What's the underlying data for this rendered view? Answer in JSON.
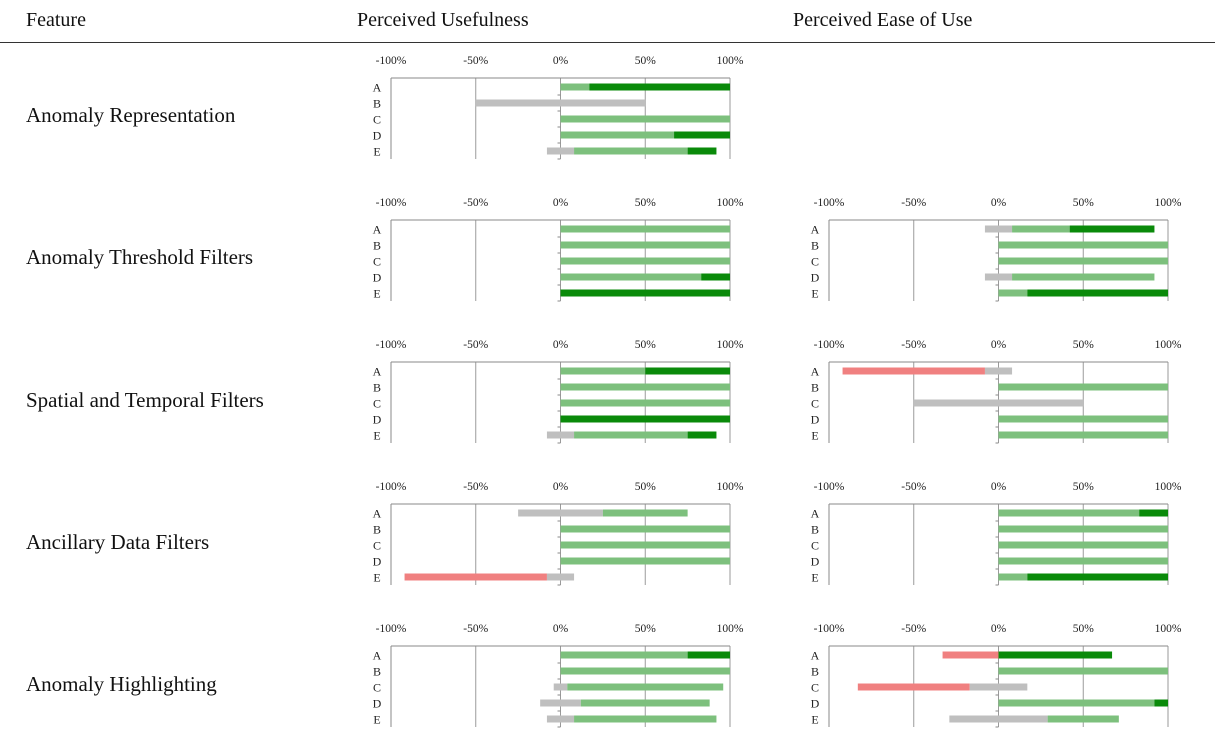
{
  "headers": {
    "feature": "Feature",
    "usefulness": "Perceived Usefulness",
    "ease": "Perceived Ease of Use"
  },
  "colors": {
    "negative": "#f08080",
    "neutral": "#bfbfbf",
    "positive": "#7dc07d",
    "strong_positive": "#0a8a0a",
    "axis": "#777777"
  },
  "chart_data": {
    "type": "bar",
    "variant": "diverging-stacked-bar-grid",
    "xlim": [
      -100,
      100
    ],
    "tick_labels": [
      "-100%",
      "-50%",
      "0%",
      "50%",
      "100%"
    ],
    "participants": [
      "A",
      "B",
      "C",
      "D",
      "E"
    ],
    "segment_keys": [
      "negative",
      "neutral",
      "positive",
      "strong_positive"
    ],
    "features": [
      {
        "name": "Anomaly Representation",
        "usefulness": [
          [
            [
              0,
              0
            ],
            [
              0,
              0
            ],
            [
              0,
              17
            ],
            [
              17,
              100
            ]
          ],
          [
            [
              0,
              0
            ],
            [
              -50,
              50
            ],
            [
              0,
              0
            ],
            [
              0,
              0
            ]
          ],
          [
            [
              0,
              0
            ],
            [
              0,
              0
            ],
            [
              0,
              100
            ],
            [
              0,
              0
            ]
          ],
          [
            [
              0,
              0
            ],
            [
              0,
              0
            ],
            [
              0,
              67
            ],
            [
              67,
              100
            ]
          ],
          [
            [
              0,
              0
            ],
            [
              -8,
              8
            ],
            [
              8,
              75
            ],
            [
              75,
              92
            ]
          ]
        ],
        "ease": null
      },
      {
        "name": "Anomaly Threshold Filters",
        "usefulness": [
          [
            [
              0,
              0
            ],
            [
              0,
              0
            ],
            [
              0,
              100
            ],
            [
              0,
              0
            ]
          ],
          [
            [
              0,
              0
            ],
            [
              0,
              0
            ],
            [
              0,
              100
            ],
            [
              0,
              0
            ]
          ],
          [
            [
              0,
              0
            ],
            [
              0,
              0
            ],
            [
              0,
              100
            ],
            [
              0,
              0
            ]
          ],
          [
            [
              0,
              0
            ],
            [
              0,
              0
            ],
            [
              0,
              83
            ],
            [
              83,
              100
            ]
          ],
          [
            [
              0,
              0
            ],
            [
              0,
              0
            ],
            [
              0,
              0
            ],
            [
              0,
              100
            ]
          ]
        ],
        "ease": [
          [
            [
              0,
              0
            ],
            [
              -8,
              8
            ],
            [
              8,
              42
            ],
            [
              42,
              92
            ]
          ],
          [
            [
              0,
              0
            ],
            [
              0,
              0
            ],
            [
              0,
              100
            ],
            [
              0,
              0
            ]
          ],
          [
            [
              0,
              0
            ],
            [
              0,
              0
            ],
            [
              0,
              100
            ],
            [
              0,
              0
            ]
          ],
          [
            [
              0,
              0
            ],
            [
              -8,
              8
            ],
            [
              8,
              92
            ],
            [
              0,
              0
            ]
          ],
          [
            [
              0,
              0
            ],
            [
              0,
              0
            ],
            [
              0,
              17
            ],
            [
              17,
              100
            ]
          ]
        ]
      },
      {
        "name": "Spatial and Temporal Filters",
        "usefulness": [
          [
            [
              0,
              0
            ],
            [
              0,
              0
            ],
            [
              0,
              50
            ],
            [
              50,
              100
            ]
          ],
          [
            [
              0,
              0
            ],
            [
              0,
              0
            ],
            [
              0,
              100
            ],
            [
              0,
              0
            ]
          ],
          [
            [
              0,
              0
            ],
            [
              0,
              0
            ],
            [
              0,
              100
            ],
            [
              0,
              0
            ]
          ],
          [
            [
              0,
              0
            ],
            [
              0,
              0
            ],
            [
              0,
              0
            ],
            [
              0,
              100
            ]
          ],
          [
            [
              0,
              0
            ],
            [
              -8,
              8
            ],
            [
              8,
              75
            ],
            [
              75,
              92
            ]
          ]
        ],
        "ease": [
          [
            [
              -92,
              -8
            ],
            [
              -8,
              8
            ],
            [
              0,
              0
            ],
            [
              0,
              0
            ]
          ],
          [
            [
              0,
              0
            ],
            [
              0,
              0
            ],
            [
              0,
              100
            ],
            [
              0,
              0
            ]
          ],
          [
            [
              0,
              0
            ],
            [
              -50,
              50
            ],
            [
              0,
              0
            ],
            [
              0,
              0
            ]
          ],
          [
            [
              0,
              0
            ],
            [
              0,
              0
            ],
            [
              0,
              100
            ],
            [
              0,
              0
            ]
          ],
          [
            [
              0,
              0
            ],
            [
              0,
              0
            ],
            [
              0,
              100
            ],
            [
              0,
              0
            ]
          ]
        ]
      },
      {
        "name": "Ancillary Data Filters",
        "usefulness": [
          [
            [
              0,
              0
            ],
            [
              -25,
              25
            ],
            [
              25,
              75
            ],
            [
              0,
              0
            ]
          ],
          [
            [
              0,
              0
            ],
            [
              0,
              0
            ],
            [
              0,
              100
            ],
            [
              0,
              0
            ]
          ],
          [
            [
              0,
              0
            ],
            [
              0,
              0
            ],
            [
              0,
              100
            ],
            [
              0,
              0
            ]
          ],
          [
            [
              0,
              0
            ],
            [
              0,
              0
            ],
            [
              0,
              100
            ],
            [
              0,
              0
            ]
          ],
          [
            [
              -92,
              -8
            ],
            [
              -8,
              8
            ],
            [
              0,
              0
            ],
            [
              0,
              0
            ]
          ]
        ],
        "ease": [
          [
            [
              0,
              0
            ],
            [
              0,
              0
            ],
            [
              0,
              83
            ],
            [
              83,
              100
            ]
          ],
          [
            [
              0,
              0
            ],
            [
              0,
              0
            ],
            [
              0,
              100
            ],
            [
              0,
              0
            ]
          ],
          [
            [
              0,
              0
            ],
            [
              0,
              0
            ],
            [
              0,
              100
            ],
            [
              0,
              0
            ]
          ],
          [
            [
              0,
              0
            ],
            [
              0,
              0
            ],
            [
              0,
              100
            ],
            [
              0,
              0
            ]
          ],
          [
            [
              0,
              0
            ],
            [
              0,
              0
            ],
            [
              0,
              17
            ],
            [
              17,
              100
            ]
          ]
        ]
      },
      {
        "name": "Anomaly Highlighting",
        "usefulness": [
          [
            [
              0,
              0
            ],
            [
              0,
              0
            ],
            [
              0,
              75
            ],
            [
              75,
              100
            ]
          ],
          [
            [
              0,
              0
            ],
            [
              0,
              0
            ],
            [
              0,
              100
            ],
            [
              0,
              0
            ]
          ],
          [
            [
              0,
              0
            ],
            [
              -4,
              4
            ],
            [
              4,
              96
            ],
            [
              0,
              0
            ]
          ],
          [
            [
              0,
              0
            ],
            [
              -12,
              12
            ],
            [
              12,
              88
            ],
            [
              0,
              0
            ]
          ],
          [
            [
              0,
              0
            ],
            [
              -8,
              8
            ],
            [
              8,
              92
            ],
            [
              0,
              0
            ]
          ]
        ],
        "ease": [
          [
            [
              -33,
              0
            ],
            [
              0,
              0
            ],
            [
              0,
              0
            ],
            [
              0,
              67
            ]
          ],
          [
            [
              0,
              0
            ],
            [
              0,
              0
            ],
            [
              0,
              100
            ],
            [
              0,
              0
            ]
          ],
          [
            [
              -83,
              -17
            ],
            [
              -17,
              17
            ],
            [
              0,
              0
            ],
            [
              0,
              0
            ]
          ],
          [
            [
              0,
              0
            ],
            [
              0,
              0
            ],
            [
              0,
              92
            ],
            [
              92,
              100
            ]
          ],
          [
            [
              0,
              0
            ],
            [
              -29,
              29
            ],
            [
              29,
              71
            ],
            [
              0,
              0
            ]
          ]
        ]
      }
    ]
  }
}
